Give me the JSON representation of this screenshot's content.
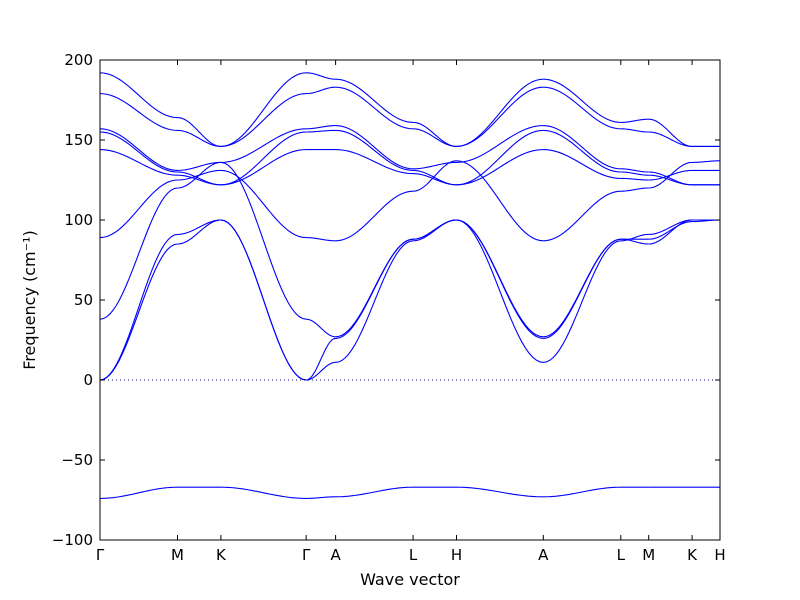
{
  "chart_data": {
    "type": "line",
    "xlabel": "Wave vector",
    "ylabel": "Frequency (cm⁻¹)",
    "ylim": [
      -100,
      200
    ],
    "yticks": [
      -100,
      -50,
      0,
      50,
      100,
      150,
      200
    ],
    "grid": false,
    "legend": "none",
    "line_color": "#0000ff",
    "zero_line_color": "#000080",
    "high_symmetry_points": [
      {
        "label": "Γ",
        "x": 0.0
      },
      {
        "label": "M",
        "x": 0.25
      },
      {
        "label": "K",
        "x": 0.39
      },
      {
        "label": "Γ",
        "x": 0.665
      },
      {
        "label": "A",
        "x": 0.76
      },
      {
        "label": "L",
        "x": 1.01
      },
      {
        "label": "H",
        "x": 1.15
      },
      {
        "label": "A",
        "x": 1.43
      },
      {
        "label": "L",
        "x": 1.68
      },
      {
        "label": "M",
        "x": 1.77
      },
      {
        "label": "K",
        "x": 1.91
      },
      {
        "label": "H",
        "x": 2.0
      }
    ],
    "segments": [
      {
        "from": "Γ",
        "to": "M",
        "bands": [
          [
            -74,
            -67
          ],
          [
            0,
            85
          ],
          [
            0,
            91
          ],
          [
            38,
            120
          ],
          [
            89,
            125
          ],
          [
            144,
            128
          ],
          [
            155,
            130
          ],
          [
            157,
            131
          ],
          [
            179,
            156
          ],
          [
            192,
            164
          ]
        ]
      },
      {
        "from": "M",
        "to": "K",
        "bands": [
          [
            -67,
            -67
          ],
          [
            85,
            100
          ],
          [
            91,
            100
          ],
          [
            120,
            136
          ],
          [
            125,
            131
          ],
          [
            128,
            122
          ],
          [
            130,
            122
          ],
          [
            131,
            136
          ],
          [
            156,
            146
          ],
          [
            164,
            146
          ]
        ]
      },
      {
        "from": "K",
        "to": "Γ",
        "bands": [
          [
            -67,
            -74
          ],
          [
            100,
            0
          ],
          [
            100,
            0
          ],
          [
            136,
            38
          ],
          [
            131,
            89
          ],
          [
            122,
            144
          ],
          [
            122,
            155
          ],
          [
            136,
            157
          ],
          [
            146,
            179
          ],
          [
            146,
            192
          ]
        ]
      },
      {
        "from": "Γ",
        "to": "A",
        "bands": [
          [
            -74,
            -73
          ],
          [
            0,
            26
          ],
          [
            0,
            11
          ],
          [
            38,
            27
          ],
          [
            89,
            87
          ],
          [
            144,
            144
          ],
          [
            155,
            156
          ],
          [
            157,
            159
          ],
          [
            179,
            183
          ],
          [
            192,
            188
          ]
        ]
      },
      {
        "from": "A",
        "to": "L",
        "bands": [
          [
            -73,
            -67
          ],
          [
            26,
            88
          ],
          [
            11,
            87
          ],
          [
            27,
            88
          ],
          [
            87,
            118
          ],
          [
            144,
            129
          ],
          [
            156,
            131
          ],
          [
            159,
            132
          ],
          [
            183,
            157
          ],
          [
            188,
            161
          ]
        ]
      },
      {
        "from": "L",
        "to": "H",
        "bands": [
          [
            -67,
            -67
          ],
          [
            88,
            100
          ],
          [
            87,
            100
          ],
          [
            88,
            100
          ],
          [
            118,
            137
          ],
          [
            129,
            122
          ],
          [
            131,
            122
          ],
          [
            132,
            136
          ],
          [
            157,
            146
          ],
          [
            161,
            146
          ]
        ]
      },
      {
        "from": "H",
        "to": "A",
        "bands": [
          [
            -67,
            -73
          ],
          [
            100,
            26
          ],
          [
            100,
            11
          ],
          [
            100,
            27
          ],
          [
            137,
            87
          ],
          [
            122,
            144
          ],
          [
            122,
            156
          ],
          [
            136,
            159
          ],
          [
            146,
            183
          ],
          [
            146,
            188
          ]
        ]
      },
      {
        "from": "A",
        "to": "L",
        "bands": [
          [
            -73,
            -67
          ],
          [
            26,
            88
          ],
          [
            11,
            87
          ],
          [
            27,
            88
          ],
          [
            87,
            118
          ],
          [
            144,
            126
          ],
          [
            156,
            130
          ],
          [
            159,
            132
          ],
          [
            183,
            157
          ],
          [
            188,
            161
          ]
        ]
      },
      {
        "from": "L",
        "to": "M",
        "bands": [
          [
            -67,
            -67
          ],
          [
            88,
            85
          ],
          [
            87,
            91
          ],
          [
            88,
            88
          ],
          [
            118,
            120
          ],
          [
            126,
            125
          ],
          [
            130,
            128
          ],
          [
            132,
            130
          ],
          [
            157,
            155
          ],
          [
            161,
            163
          ]
        ]
      },
      {
        "from": "M",
        "to": "K",
        "bands": [
          [
            -67,
            -67
          ],
          [
            85,
            100
          ],
          [
            91,
            100
          ],
          [
            88,
            99
          ],
          [
            120,
            136
          ],
          [
            125,
            131
          ],
          [
            128,
            122
          ],
          [
            130,
            122
          ],
          [
            155,
            146
          ],
          [
            163,
            146
          ]
        ]
      },
      {
        "from": "K",
        "to": "H",
        "bands": [
          [
            -67,
            -67
          ],
          [
            100,
            100
          ],
          [
            100,
            100
          ],
          [
            99,
            100
          ],
          [
            136,
            137
          ],
          [
            131,
            131
          ],
          [
            122,
            122
          ],
          [
            122,
            122
          ],
          [
            146,
            146
          ],
          [
            146,
            146
          ]
        ]
      }
    ]
  }
}
